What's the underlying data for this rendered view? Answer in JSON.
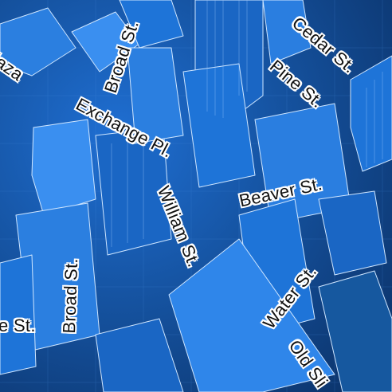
{
  "map": {
    "style": "3d-buildings-blueprint",
    "colors": {
      "building_fill": "#1e74d8",
      "building_dark": "#0d3f88",
      "building_light": "#3a8ff0",
      "building_edge": "#cfe6ff",
      "label_text": "#111111",
      "label_halo": "#ffffff"
    },
    "street_labels": [
      "laza",
      "Broad St.",
      "Cedar St.",
      "Pine St.",
      "Exchange Pl.",
      "Beaver St.",
      "William St.",
      "Broad St.",
      "Water St.",
      "e St.",
      "Old Sli"
    ]
  }
}
